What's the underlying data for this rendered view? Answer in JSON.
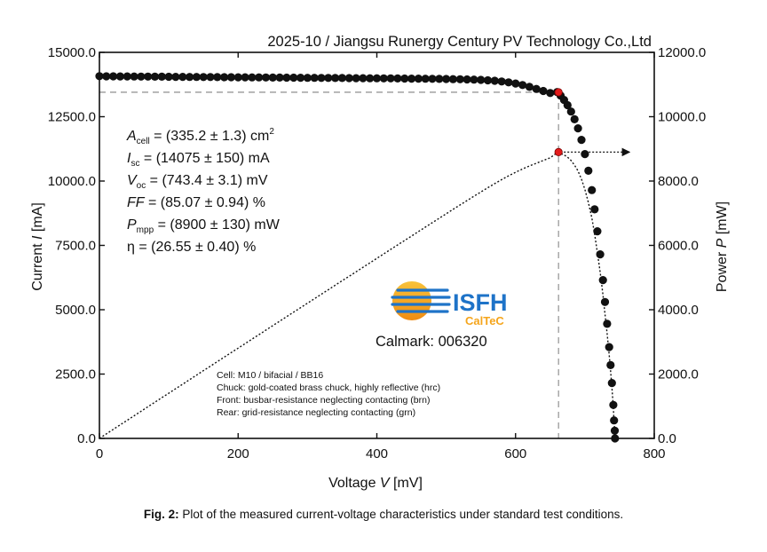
{
  "chart_data": {
    "type": "line",
    "header": "2025-10 / Jiangsu Runergy Century PV Technology Co.,Ltd",
    "xlabel_prefix": "Voltage ",
    "xlabel_var": "V",
    "xlabel_unit": " [mV]",
    "ylabel_left_prefix": "Current ",
    "ylabel_left_var": "I",
    "ylabel_left_unit": " [mA]",
    "ylabel_right_prefix": "Power ",
    "ylabel_right_var": "P",
    "ylabel_right_unit": " [mW]",
    "xlim": [
      0,
      800
    ],
    "ylim_left": [
      0,
      15000
    ],
    "ylim_right": [
      0,
      12000
    ],
    "xticks": [
      "0",
      "200",
      "400",
      "600",
      "800"
    ],
    "yticks_left": [
      "0.0",
      "2500.0",
      "5000.0",
      "7500.0",
      "10000.0",
      "12500.0",
      "15000.0"
    ],
    "yticks_right": [
      "0.0",
      "2000.0",
      "4000.0",
      "6000.0",
      "8000.0",
      "10000.0",
      "12000.0"
    ],
    "params": {
      "a": {
        "sym": "A",
        "sub": "cell",
        "text": " = (335.2 ± 1.3) cm",
        "sup": "2"
      },
      "isc": {
        "sym": "I",
        "sub": "sc",
        "text": " = (14075 ± 150) mA"
      },
      "voc": {
        "sym": "V",
        "sub": "oc",
        "text": " = (743.4 ± 3.1) mV"
      },
      "ff": {
        "sym": "FF",
        "text": " = (85.07 ± 0.94) %"
      },
      "pmpp": {
        "sym": "P",
        "sub": "mpp",
        "text": " = (8900 ± 130) mW"
      },
      "eta": {
        "text": "η = (26.55 ± 0.40) %"
      }
    },
    "notes": [
      "Cell: M10 / bifacial / BB16",
      "Chuck: gold-coated brass chuck, highly reflective (hrc)",
      "Front: busbar-resistance neglecting contacting (brn)",
      "Rear: grid-resistance neglecting contacting (grn)"
    ],
    "logo": {
      "line1": "ISFH",
      "line2": "CalTeC"
    },
    "calmark": "Calmark: 006320",
    "mpp": {
      "voltage_mV": 662,
      "current_mA": 13450,
      "power_mW": 8900
    },
    "iv_curve": {
      "isc_mA": 14075,
      "voc_mV": 743.4,
      "points": [
        [
          0,
          14075
        ],
        [
          10,
          14070
        ],
        [
          20,
          14068
        ],
        [
          30,
          14066
        ],
        [
          40,
          14064
        ],
        [
          50,
          14062
        ],
        [
          60,
          14060
        ],
        [
          70,
          14058
        ],
        [
          80,
          14056
        ],
        [
          90,
          14054
        ],
        [
          100,
          14052
        ],
        [
          110,
          14050
        ],
        [
          120,
          14048
        ],
        [
          130,
          14046
        ],
        [
          140,
          14044
        ],
        [
          150,
          14042
        ],
        [
          160,
          14040
        ],
        [
          170,
          14038
        ],
        [
          180,
          14036
        ],
        [
          190,
          14034
        ],
        [
          200,
          14032
        ],
        [
          210,
          14030
        ],
        [
          220,
          14028
        ],
        [
          230,
          14026
        ],
        [
          240,
          14024
        ],
        [
          250,
          14022
        ],
        [
          260,
          14020
        ],
        [
          270,
          14018
        ],
        [
          280,
          14016
        ],
        [
          290,
          14014
        ],
        [
          300,
          14012
        ],
        [
          310,
          14010
        ],
        [
          320,
          14008
        ],
        [
          330,
          14006
        ],
        [
          340,
          14004
        ],
        [
          350,
          14002
        ],
        [
          360,
          14000
        ],
        [
          370,
          13998
        ],
        [
          380,
          13996
        ],
        [
          390,
          13994
        ],
        [
          400,
          13992
        ],
        [
          410,
          13990
        ],
        [
          420,
          13988
        ],
        [
          430,
          13986
        ],
        [
          440,
          13984
        ],
        [
          450,
          13980
        ],
        [
          460,
          13978
        ],
        [
          470,
          13975
        ],
        [
          480,
          13972
        ],
        [
          490,
          13968
        ],
        [
          500,
          13965
        ],
        [
          510,
          13960
        ],
        [
          520,
          13955
        ],
        [
          530,
          13948
        ],
        [
          540,
          13940
        ],
        [
          550,
          13930
        ],
        [
          560,
          13915
        ],
        [
          570,
          13895
        ],
        [
          580,
          13870
        ],
        [
          590,
          13835
        ],
        [
          600,
          13790
        ],
        [
          610,
          13730
        ],
        [
          620,
          13660
        ],
        [
          630,
          13580
        ],
        [
          640,
          13500
        ],
        [
          650,
          13420
        ],
        [
          660,
          13460
        ],
        [
          665,
          13320
        ],
        [
          670,
          13150
        ],
        [
          675,
          12950
        ],
        [
          680,
          12700
        ],
        [
          685,
          12400
        ],
        [
          690,
          12050
        ],
        [
          695,
          11600
        ],
        [
          700,
          11050
        ],
        [
          705,
          10400
        ],
        [
          710,
          9650
        ],
        [
          714,
          8900
        ],
        [
          718,
          8050
        ],
        [
          722,
          7150
        ],
        [
          726,
          6150
        ],
        [
          729,
          5300
        ],
        [
          732,
          4450
        ],
        [
          735,
          3550
        ],
        [
          737,
          2850
        ],
        [
          739,
          2150
        ],
        [
          741,
          1300
        ],
        [
          742,
          700
        ],
        [
          743,
          300
        ],
        [
          743.4,
          0
        ]
      ]
    }
  },
  "caption": {
    "label": "Fig. 2:",
    "text": " Plot of the measured current-voltage characteristics under standard test conditions."
  },
  "colors": {
    "dots": "#111111",
    "mpp_marker": "#e21b1b",
    "guide": "#999999",
    "logo_orange": "#f5a51c",
    "logo_blue": "#1e73c8"
  }
}
